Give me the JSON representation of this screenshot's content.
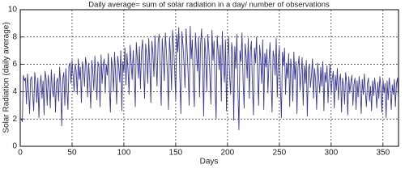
{
  "chart_data": {
    "type": "line",
    "title": "Daily average= sum of solar radiation in a day/ number of observations",
    "xlabel": "Days",
    "ylabel": "Solar Radiation (daily average)",
    "xlim": [
      0,
      365
    ],
    "ylim": [
      0,
      10
    ],
    "xticks": [
      0,
      50,
      100,
      150,
      200,
      250,
      300,
      350
    ],
    "yticks": [
      0,
      2,
      4,
      6,
      8,
      10
    ],
    "grid": true,
    "x": [
      1,
      2,
      3,
      4,
      5,
      6,
      7,
      8,
      9,
      10,
      11,
      12,
      13,
      14,
      15,
      16,
      17,
      18,
      19,
      20,
      21,
      22,
      23,
      24,
      25,
      26,
      27,
      28,
      29,
      30,
      31,
      32,
      33,
      34,
      35,
      36,
      37,
      38,
      39,
      40,
      41,
      42,
      43,
      44,
      45,
      46,
      47,
      48,
      49,
      50,
      51,
      52,
      53,
      54,
      55,
      56,
      57,
      58,
      59,
      60,
      61,
      62,
      63,
      64,
      65,
      66,
      67,
      68,
      69,
      70,
      71,
      72,
      73,
      74,
      75,
      76,
      77,
      78,
      79,
      80,
      81,
      82,
      83,
      84,
      85,
      86,
      87,
      88,
      89,
      90,
      91,
      92,
      93,
      94,
      95,
      96,
      97,
      98,
      99,
      100,
      101,
      102,
      103,
      104,
      105,
      106,
      107,
      108,
      109,
      110,
      111,
      112,
      113,
      114,
      115,
      116,
      117,
      118,
      119,
      120,
      121,
      122,
      123,
      124,
      125,
      126,
      127,
      128,
      129,
      130,
      131,
      132,
      133,
      134,
      135,
      136,
      137,
      138,
      139,
      140,
      141,
      142,
      143,
      144,
      145,
      146,
      147,
      148,
      149,
      150,
      151,
      152,
      153,
      154,
      155,
      156,
      157,
      158,
      159,
      160,
      161,
      162,
      163,
      164,
      165,
      166,
      167,
      168,
      169,
      170,
      171,
      172,
      173,
      174,
      175,
      176,
      177,
      178,
      179,
      180,
      181,
      182,
      183,
      184,
      185,
      186,
      187,
      188,
      189,
      190,
      191,
      192,
      193,
      194,
      195,
      196,
      197,
      198,
      199,
      200,
      201,
      202,
      203,
      204,
      205,
      206,
      207,
      208,
      209,
      210,
      211,
      212,
      213,
      214,
      215,
      216,
      217,
      218,
      219,
      220,
      221,
      222,
      223,
      224,
      225,
      226,
      227,
      228,
      229,
      230,
      231,
      232,
      233,
      234,
      235,
      236,
      237,
      238,
      239,
      240,
      241,
      242,
      243,
      244,
      245,
      246,
      247,
      248,
      249,
      250,
      251,
      252,
      253,
      254,
      255,
      256,
      257,
      258,
      259,
      260,
      261,
      262,
      263,
      264,
      265,
      266,
      267,
      268,
      269,
      270,
      271,
      272,
      273,
      274,
      275,
      276,
      277,
      278,
      279,
      280,
      281,
      282,
      283,
      284,
      285,
      286,
      287,
      288,
      289,
      290,
      291,
      292,
      293,
      294,
      295,
      296,
      297,
      298,
      299,
      300,
      301,
      302,
      303,
      304,
      305,
      306,
      307,
      308,
      309,
      310,
      311,
      312,
      313,
      314,
      315,
      316,
      317,
      318,
      319,
      320,
      321,
      322,
      323,
      324,
      325,
      326,
      327,
      328,
      329,
      330,
      331,
      332,
      333,
      334,
      335,
      336,
      337,
      338,
      339,
      340,
      341,
      342,
      343,
      344,
      345,
      346,
      347,
      348,
      349,
      350,
      351,
      352,
      353,
      354,
      355,
      356,
      357,
      358,
      359,
      360,
      361,
      362,
      363,
      364,
      365
    ],
    "series": [
      {
        "color": "#3b3b96",
        "values": [
          2.0,
          1.8,
          5.2,
          4.8,
          5.0,
          3.1,
          5.3,
          4.2,
          2.4,
          4.9,
          5.1,
          3.8,
          2.6,
          5.4,
          4.6,
          3.2,
          5.0,
          2.1,
          4.4,
          5.2,
          3.5,
          4.8,
          2.3,
          5.5,
          4.9,
          3.0,
          5.2,
          4.4,
          2.8,
          5.6,
          4.1,
          3.6,
          5.3,
          2.5,
          4.7,
          5.0,
          3.3,
          5.8,
          4.5,
          1.5,
          4.9,
          5.4,
          3.0,
          5.7,
          4.2,
          2.7,
          5.9,
          6.1,
          4.6,
          6.3,
          5.2,
          4.0,
          6.0,
          5.5,
          3.8,
          6.4,
          4.9,
          5.8,
          3.2,
          6.2,
          5.6,
          4.4,
          6.5,
          5.9,
          3.6,
          6.1,
          4.8,
          2.8,
          6.3,
          5.5,
          4.1,
          6.6,
          5.0,
          3.4,
          6.2,
          5.8,
          2.9,
          6.7,
          4.6,
          5.9,
          6.4,
          3.9,
          6.0,
          5.2,
          6.8,
          4.3,
          2.5,
          6.5,
          5.7,
          4.0,
          6.9,
          5.3,
          3.1,
          6.6,
          5.9,
          4.7,
          7.0,
          2.6,
          6.2,
          5.4,
          7.2,
          4.5,
          6.8,
          5.6,
          3.8,
          7.4,
          6.1,
          4.9,
          7.0,
          5.3,
          2.9,
          7.6,
          6.4,
          5.0,
          7.3,
          4.2,
          6.9,
          7.8,
          5.5,
          3.5,
          7.5,
          6.6,
          4.6,
          7.9,
          6.0,
          3.2,
          7.7,
          6.8,
          5.1,
          8.1,
          6.3,
          4.4,
          7.6,
          8.2,
          5.7,
          3.0,
          7.9,
          6.5,
          4.8,
          8.3,
          7.0,
          5.4,
          2.7,
          8.0,
          6.7,
          4.1,
          8.5,
          7.2,
          5.6,
          3.4,
          8.2,
          6.9,
          8.7,
          5.0,
          2.4,
          8.4,
          7.4,
          6.1,
          4.3,
          8.6,
          7.1,
          5.3,
          3.0,
          8.8,
          6.4,
          7.8,
          4.6,
          2.9,
          8.3,
          6.8,
          5.5,
          8.0,
          3.6,
          7.5,
          8.6,
          5.9,
          2.2,
          7.9,
          6.6,
          4.0,
          8.2,
          7.0,
          5.2,
          3.1,
          8.5,
          6.3,
          7.7,
          4.4,
          2.0,
          8.1,
          6.9,
          5.6,
          7.4,
          3.3,
          8.4,
          6.0,
          4.7,
          7.8,
          2.6,
          6.5,
          8.0,
          5.1,
          3.8,
          7.6,
          6.8,
          1.9,
          7.3,
          5.7,
          8.2,
          4.2,
          1.2,
          7.0,
          6.2,
          8.3,
          4.8,
          2.8,
          7.5,
          6.6,
          5.0,
          7.9,
          3.5,
          6.9,
          7.7,
          4.5,
          2.3,
          7.2,
          6.1,
          8.0,
          5.3,
          3.0,
          7.4,
          6.4,
          4.6,
          7.8,
          2.7,
          6.8,
          5.8,
          7.1,
          3.9,
          6.2,
          7.6,
          4.8,
          2.5,
          7.0,
          6.5,
          5.2,
          7.9,
          3.6,
          6.3,
          7.3,
          4.4,
          2.1,
          6.9,
          5.9,
          7.2,
          3.8,
          6.1,
          5.0,
          6.8,
          2.9,
          6.4,
          5.5,
          3.3,
          6.9,
          4.9,
          6.2,
          2.4,
          5.8,
          6.6,
          4.1,
          5.3,
          6.5,
          3.0,
          5.9,
          4.6,
          6.3,
          2.2,
          5.6,
          6.0,
          4.3,
          5.2,
          6.4,
          3.5,
          5.7,
          4.8,
          2.7,
          6.1,
          5.0,
          3.9,
          5.8,
          4.4,
          6.2,
          2.6,
          5.4,
          4.7,
          5.9,
          3.2,
          5.1,
          6.0,
          3.8,
          4.9,
          5.5,
          2.8,
          5.2,
          4.1,
          5.7,
          3.4,
          4.8,
          5.3,
          2.5,
          5.0,
          4.4,
          3.1,
          5.4,
          4.6,
          2.3,
          5.1,
          3.9,
          4.7,
          5.2,
          3.0,
          4.5,
          5.0,
          2.7,
          4.8,
          3.6,
          5.1,
          4.2,
          2.4,
          4.9,
          3.8,
          5.3,
          4.0,
          2.9,
          4.6,
          5.0,
          3.3,
          4.4,
          2.6,
          4.8,
          3.7,
          5.0,
          4.1,
          2.8,
          4.7,
          3.5,
          5.1,
          4.3,
          2.5,
          4.9,
          3.9,
          4.6,
          2.1,
          4.8,
          3.4,
          5.0,
          4.2,
          2.7,
          4.5,
          3.8,
          4.9,
          2.9,
          4.6,
          5.0,
          3.5
        ]
      }
    ]
  }
}
